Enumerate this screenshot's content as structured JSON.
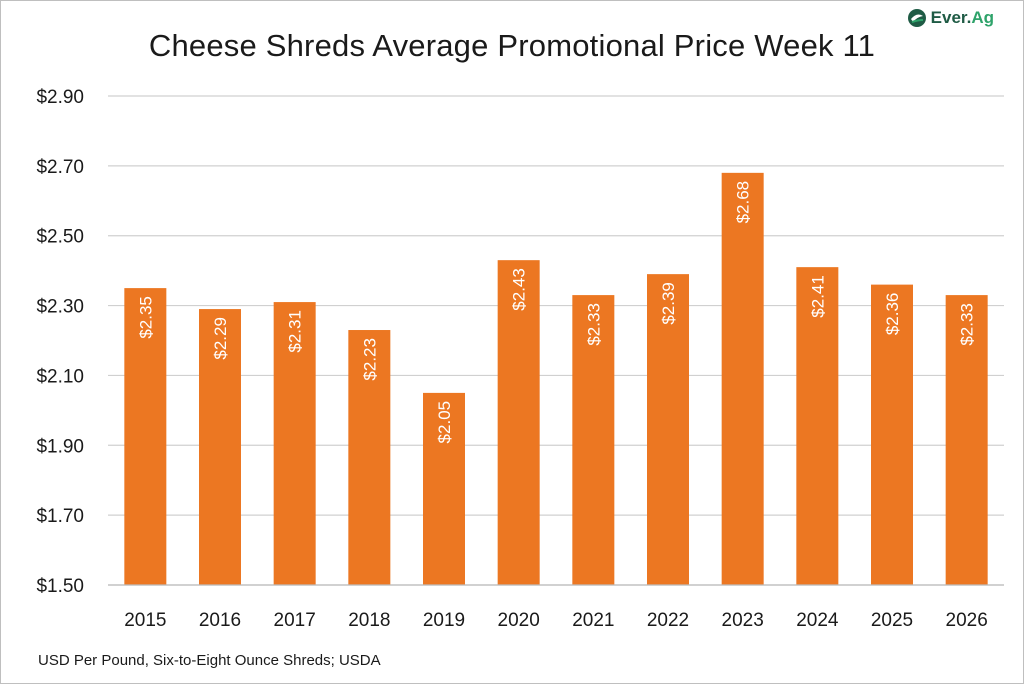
{
  "logo": {
    "brand": "Ever.",
    "brand_suffix": "Ag"
  },
  "footer": {
    "source": "USD Per Pound, Six-to-Eight Ounce Shreds; USDA"
  },
  "colors": {
    "bar": "#ec7722",
    "grid": "#d0d0d0",
    "text": "#1a1a1a",
    "logo": "#1f5b45"
  },
  "chart_data": {
    "type": "bar",
    "title": "Cheese Shreds Average Promotional Price Week 11",
    "xlabel": "",
    "ylabel": "",
    "categories": [
      "2015",
      "2016",
      "2017",
      "2018",
      "2019",
      "2020",
      "2021",
      "2022",
      "2023",
      "2024",
      "2025",
      "2026"
    ],
    "values": [
      2.35,
      2.29,
      2.31,
      2.23,
      2.05,
      2.43,
      2.33,
      2.39,
      2.68,
      2.41,
      2.36,
      2.33
    ],
    "data_labels": [
      "$2.35",
      "$2.29",
      "$2.31",
      "$2.23",
      "$2.05",
      "$2.43",
      "$2.33",
      "$2.39",
      "$2.68",
      "$2.41",
      "$2.36",
      "$2.33"
    ],
    "yticks": [
      1.5,
      1.7,
      1.9,
      2.1,
      2.3,
      2.5,
      2.7,
      2.9
    ],
    "ytick_labels": [
      "$1.50",
      "$1.70",
      "$1.90",
      "$2.10",
      "$2.30",
      "$2.50",
      "$2.70",
      "$2.90"
    ],
    "ylim": [
      1.5,
      2.9
    ],
    "grid": true
  }
}
